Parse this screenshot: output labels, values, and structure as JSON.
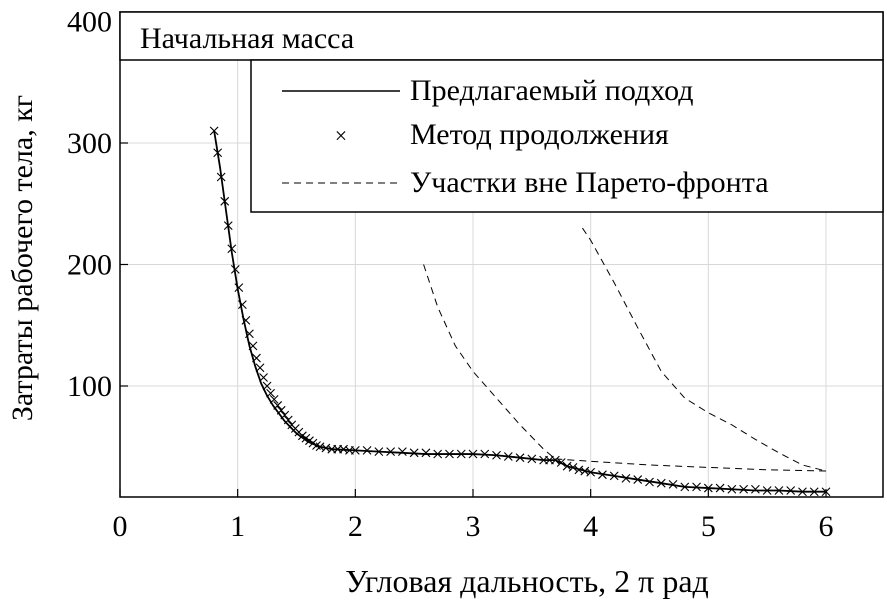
{
  "chart_data": {
    "type": "line",
    "title": "Начальная масса",
    "xlabel": "Угловая дальность, 2 π рад",
    "ylabel": "Затраты рабочего тела, кг",
    "xlim": [
      0,
      6.15
    ],
    "ylim": [
      10,
      405
    ],
    "xticks": [
      0,
      1,
      2,
      3,
      4,
      5,
      6
    ],
    "yticks": [
      100,
      200,
      300,
      400
    ],
    "xtick_labels": [
      "0",
      "1",
      "2",
      "3",
      "4",
      "5",
      "6"
    ],
    "ytick_labels": [
      "100",
      "200",
      "300",
      "400"
    ],
    "grid": true,
    "legend_position": "top-right",
    "series": [
      {
        "name": "Предлагаемый подход",
        "style": "solid",
        "x": [
          0.8,
          0.85,
          0.9,
          0.95,
          1.0,
          1.05,
          1.1,
          1.15,
          1.2,
          1.25,
          1.3,
          1.4,
          1.5,
          1.6,
          1.7,
          1.8,
          2.0,
          2.2,
          2.4,
          2.6,
          2.8,
          3.0,
          3.2,
          3.4,
          3.6,
          3.7,
          3.8,
          4.0,
          4.2,
          4.4,
          4.6,
          4.8,
          5.0,
          5.2,
          5.4,
          5.6,
          5.8,
          6.0
        ],
        "y": [
          310,
          280,
          245,
          210,
          180,
          155,
          133,
          116,
          102,
          92,
          84,
          71,
          61,
          54,
          50,
          48,
          47,
          46,
          45,
          44,
          44,
          44,
          43,
          41,
          39,
          39,
          34,
          29,
          26,
          23,
          20,
          17,
          16,
          15,
          14,
          14,
          13,
          13
        ]
      },
      {
        "name": "Метод продолжения",
        "style": "x-markers",
        "x": [
          0.8,
          0.83,
          0.86,
          0.89,
          0.92,
          0.95,
          0.98,
          1.01,
          1.04,
          1.07,
          1.1,
          1.13,
          1.16,
          1.19,
          1.22,
          1.25,
          1.28,
          1.31,
          1.34,
          1.37,
          1.4,
          1.43,
          1.46,
          1.49,
          1.52,
          1.55,
          1.58,
          1.61,
          1.64,
          1.67,
          1.7,
          1.75,
          1.8,
          1.85,
          1.9,
          1.95,
          2.0,
          2.1,
          2.2,
          2.3,
          2.4,
          2.5,
          2.6,
          2.7,
          2.8,
          2.9,
          3.0,
          3.1,
          3.2,
          3.3,
          3.4,
          3.5,
          3.6,
          3.65,
          3.7,
          3.75,
          3.8,
          3.85,
          3.9,
          3.95,
          4.0,
          4.1,
          4.2,
          4.3,
          4.4,
          4.5,
          4.6,
          4.7,
          4.8,
          4.9,
          5.0,
          5.1,
          5.2,
          5.3,
          5.4,
          5.5,
          5.6,
          5.7,
          5.8,
          5.9,
          6.0
        ],
        "y": [
          310,
          292,
          272,
          252,
          232,
          213,
          196,
          181,
          167,
          154,
          143,
          133,
          123,
          115,
          107,
          100,
          94,
          89,
          84,
          80,
          76,
          72,
          68,
          65,
          62,
          59,
          57,
          55,
          53,
          51,
          50,
          49,
          48,
          48,
          48,
          47,
          47,
          47,
          46,
          46,
          46,
          45,
          45,
          44,
          44,
          44,
          44,
          44,
          43,
          42,
          41,
          40,
          39,
          39,
          39,
          37,
          34,
          33,
          31,
          30,
          29,
          27,
          26,
          24,
          23,
          21,
          20,
          19,
          17,
          17,
          16,
          16,
          15,
          15,
          15,
          14,
          14,
          14,
          13,
          13,
          13
        ]
      },
      {
        "name": "Участки вне Парето-фронта",
        "style": "dashed",
        "segments": [
          {
            "x": [
              2.58,
              2.7,
              2.85,
              3.0,
              3.2,
              3.4,
              3.6,
              3.7
            ],
            "y": [
              200,
              165,
              133,
              112,
              90,
              68,
              48,
              40
            ]
          },
          {
            "x": [
              3.93,
              4.0,
              4.2,
              4.4,
              4.6,
              4.8,
              5.0,
              5.2,
              5.4,
              5.6,
              5.8,
              6.0
            ],
            "y": [
              230,
              220,
              185,
              148,
              112,
              90,
              78,
              68,
              56,
              45,
              35,
              30
            ]
          },
          {
            "x": [
              3.7,
              4.0,
              4.5,
              5.0,
              5.5,
              6.0
            ],
            "y": [
              40,
              38,
              35,
              33,
              31,
              30
            ]
          }
        ]
      }
    ]
  }
}
